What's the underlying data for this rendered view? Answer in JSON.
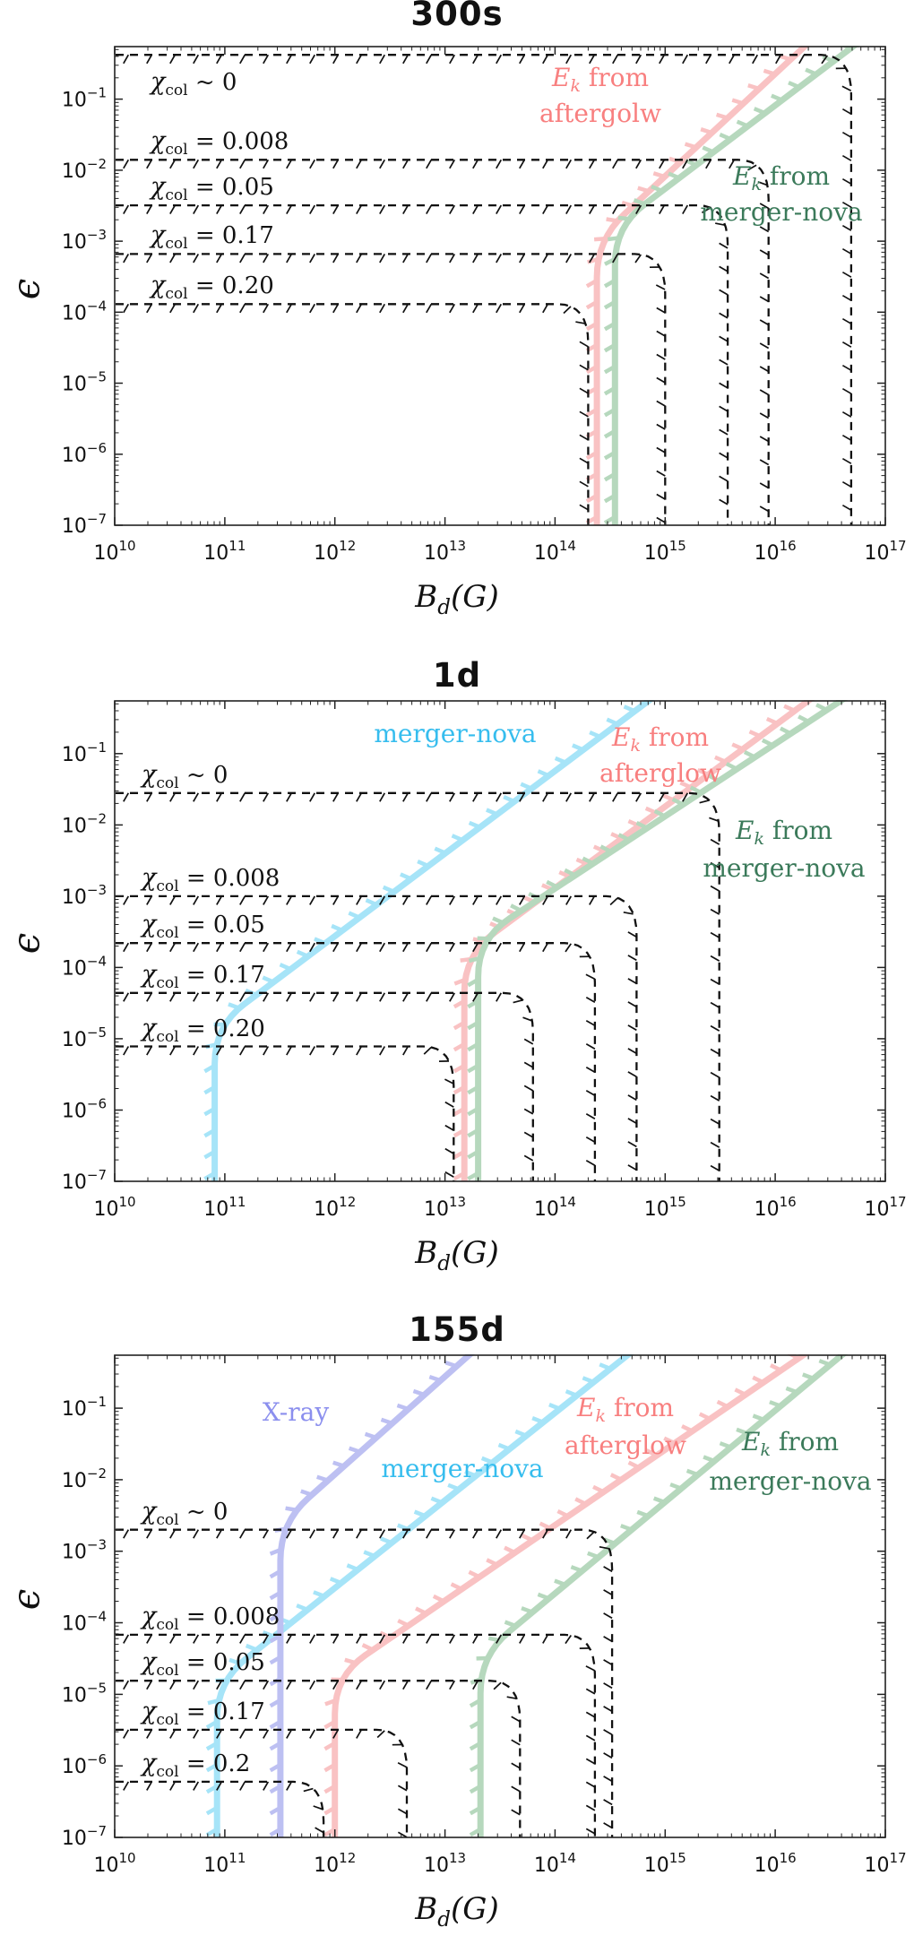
{
  "figure_caption_note": "constraints on dipole magnetic field Bd vs efficiency epsilon at three epochs",
  "chart_data": [
    {
      "type": "line",
      "title": "300s",
      "xlabel": {
        "base": "B",
        "sub": "d",
        "unit": "(G)"
      },
      "ylabel": "ϵ",
      "x_axis": {
        "scale": "log",
        "min": 10000000000.0,
        "max": 1e+17,
        "tick_exponents": [
          10,
          11,
          12,
          13,
          14,
          15,
          16,
          17
        ]
      },
      "y_axis": {
        "scale": "log",
        "min": 1e-07,
        "max": 0.55,
        "tick_exponents": [
          -1,
          -2,
          -3,
          -4,
          -5,
          -6,
          -7
        ]
      },
      "grid": false,
      "contours": [
        {
          "symbol": "χ",
          "subscript": "col",
          "relation": "~",
          "value": "0",
          "level": 0.42,
          "drop_B": 4.9e+16
        },
        {
          "symbol": "χ",
          "subscript": "col",
          "relation": "=",
          "value": "0.008",
          "level": 0.014,
          "drop_B": 8700000000000000.0
        },
        {
          "symbol": "χ",
          "subscript": "col",
          "relation": "=",
          "value": "0.05",
          "level": 0.0032,
          "drop_B": 3700000000000000.0
        },
        {
          "symbol": "χ",
          "subscript": "col",
          "relation": "=",
          "value": "0.17",
          "level": 0.00066,
          "drop_B": 1000000000000000.0
        },
        {
          "symbol": "χ",
          "subscript": "col",
          "relation": "=",
          "value": "0.20",
          "level": 0.00013,
          "drop_B": 200000000000000.0
        }
      ],
      "lines": [
        {
          "name": "Ek-from-afterglow",
          "color": "#f9c2c3",
          "label_color": "#f87f7f",
          "label": [
            [
              {
                "t": "E",
                "s": "mi"
              },
              {
                "t": "k",
                "s": "sub"
              },
              {
                "t": " from",
                "s": "p"
              }
            ],
            [
              {
                "t": "aftergolw",
                "s": "p"
              }
            ]
          ],
          "vertical_B": 240000000000000.0,
          "bend_eps": 0.00105,
          "top_exit_B": 2e+16
        },
        {
          "name": "Ek-from-merger-nova",
          "color": "#b6d8bd",
          "label_color": "#3b7a5a",
          "label": [
            [
              {
                "t": "E",
                "s": "mi"
              },
              {
                "t": "k",
                "s": "sub"
              },
              {
                "t": " from",
                "s": "p"
              }
            ],
            [
              {
                "t": "merger-nova",
                "s": "p"
              }
            ]
          ],
          "vertical_B": 350000000000000.0,
          "bend_eps": 0.0016,
          "top_exit_B": 5.6e+16
        }
      ]
    },
    {
      "type": "line",
      "title": "1d",
      "xlabel": {
        "base": "B",
        "sub": "d",
        "unit": "(G)"
      },
      "ylabel": "ϵ",
      "x_axis": {
        "scale": "log",
        "min": 10000000000.0,
        "max": 1e+17,
        "tick_exponents": [
          10,
          11,
          12,
          13,
          14,
          15,
          16,
          17
        ]
      },
      "y_axis": {
        "scale": "log",
        "min": 1e-07,
        "max": 0.55,
        "tick_exponents": [
          -1,
          -2,
          -3,
          -4,
          -5,
          -6,
          -7
        ]
      },
      "grid": false,
      "contours": [
        {
          "symbol": "χ",
          "subscript": "col",
          "relation": "~",
          "value": "0",
          "level": 0.028,
          "drop_B": 3100000000000000.0
        },
        {
          "symbol": "χ",
          "subscript": "col",
          "relation": "=",
          "value": "0.008",
          "level": 0.001,
          "drop_B": 550000000000000.0
        },
        {
          "symbol": "χ",
          "subscript": "col",
          "relation": "=",
          "value": "0.05",
          "level": 0.00022,
          "drop_B": 230000000000000.0
        },
        {
          "symbol": "χ",
          "subscript": "col",
          "relation": "=",
          "value": "0.17",
          "level": 4.4e-05,
          "drop_B": 63000000000000.0
        },
        {
          "symbol": "χ",
          "subscript": "col",
          "relation": "=",
          "value": "0.20",
          "level": 7.8e-06,
          "drop_B": 12000000000000.0
        }
      ],
      "lines": [
        {
          "name": "merger-nova",
          "color": "#a6e4f8",
          "label_color": "#36bdee",
          "label": [
            [
              {
                "t": "merger-nova",
                "s": "p"
              }
            ]
          ],
          "vertical_B": 81000000000.0,
          "bend_eps": 1.5e-05,
          "top_exit_B": 780000000000000.0
        },
        {
          "name": "Ek-from-afterglow",
          "color": "#f9c2c3",
          "label_color": "#f87f7f",
          "label": [
            [
              {
                "t": "E",
                "s": "mi"
              },
              {
                "t": "k",
                "s": "sub"
              },
              {
                "t": " from",
                "s": "p"
              }
            ],
            [
              {
                "t": "afterglow",
                "s": "p"
              }
            ]
          ],
          "vertical_B": 15000000000000.0,
          "bend_eps": 0.00015,
          "top_exit_B": 2.2e+16
        },
        {
          "name": "Ek-from-merger-nova",
          "color": "#b6d8bd",
          "label_color": "#3b7a5a",
          "label": [
            [
              {
                "t": "E",
                "s": "mi"
              },
              {
                "t": "k",
                "s": "sub"
              },
              {
                "t": " from",
                "s": "p"
              }
            ],
            [
              {
                "t": "merger-nova",
                "s": "p"
              }
            ]
          ],
          "vertical_B": 20000000000000.0,
          "bend_eps": 0.00025,
          "top_exit_B": 4.4e+16
        }
      ]
    },
    {
      "type": "line",
      "title": "155d",
      "xlabel": {
        "base": "B",
        "sub": "d",
        "unit": "(G)"
      },
      "ylabel": "ϵ",
      "x_axis": {
        "scale": "log",
        "min": 10000000000.0,
        "max": 1e+17,
        "tick_exponents": [
          10,
          11,
          12,
          13,
          14,
          15,
          16,
          17
        ]
      },
      "y_axis": {
        "scale": "log",
        "min": 1e-07,
        "max": 0.55,
        "tick_exponents": [
          -1,
          -2,
          -3,
          -4,
          -5,
          -6,
          -7
        ]
      },
      "grid": false,
      "contours": [
        {
          "symbol": "χ",
          "subscript": "col",
          "relation": "~",
          "value": "0",
          "level": 0.002,
          "drop_B": 330000000000000.0
        },
        {
          "symbol": "χ",
          "subscript": "col",
          "relation": "=",
          "value": "0.008",
          "level": 6.8e-05,
          "drop_B": 230000000000000.0
        },
        {
          "symbol": "χ",
          "subscript": "col",
          "relation": "=",
          "value": "0.05",
          "level": 1.55e-05,
          "drop_B": 48000000000000.0
        },
        {
          "symbol": "χ",
          "subscript": "col",
          "relation": "=",
          "value": "0.17",
          "level": 3.2e-06,
          "drop_B": 4500000000000.0
        },
        {
          "symbol": "χ",
          "subscript": "col",
          "relation": "=",
          "value": "0.2",
          "level": 6e-07,
          "drop_B": 790000000000.0
        }
      ],
      "lines": [
        {
          "name": "merger-nova",
          "color": "#a6e4f8",
          "label_color": "#36bdee",
          "label": [
            [
              {
                "t": "merger-nova",
                "s": "p"
              }
            ]
          ],
          "vertical_B": 85000000000.0,
          "bend_eps": 1.5e-05,
          "top_exit_B": 500000000000000.0
        },
        {
          "name": "X-ray",
          "color": "#bdc0f2",
          "label_color": "#8b8fee",
          "label": [
            [
              {
                "t": "X-ray",
                "s": "p"
              }
            ]
          ],
          "vertical_B": 320000000000.0,
          "bend_eps": 0.0025,
          "top_exit_B": 18000000000000.0
        },
        {
          "name": "Ek-from-afterglow",
          "color": "#f9c2c3",
          "label_color": "#f87f7f",
          "label": [
            [
              {
                "t": "E",
                "s": "mi"
              },
              {
                "t": "k",
                "s": "sub"
              },
              {
                "t": " from",
                "s": "p"
              }
            ],
            [
              {
                "t": "afterglow",
                "s": "p"
              }
            ]
          ],
          "vertical_B": 1000000000000.0,
          "bend_eps": 1.8e-05,
          "top_exit_B": 2e+16
        },
        {
          "name": "Ek-from-merger-nova",
          "color": "#b6d8bd",
          "label_color": "#3b7a5a",
          "label": [
            [
              {
                "t": "E",
                "s": "mi"
              },
              {
                "t": "k",
                "s": "sub"
              },
              {
                "t": " from",
                "s": "p"
              }
            ],
            [
              {
                "t": "merger-nova",
                "s": "p"
              }
            ]
          ],
          "vertical_B": 21000000000000.0,
          "bend_eps": 3.5e-05,
          "top_exit_B": 4.4e+16
        }
      ]
    }
  ]
}
